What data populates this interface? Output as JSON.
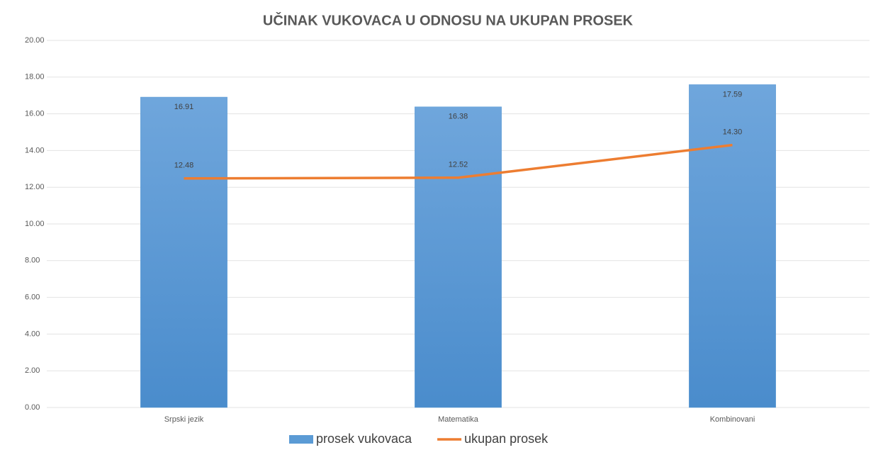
{
  "chart_data": {
    "type": "bar",
    "title": "UČINAK VUKOVACA U ODNOSU NA UKUPAN PROSEK",
    "categories": [
      "Srpski jezik",
      "Matematika",
      "Kombinovani"
    ],
    "series": [
      {
        "name": "prosek vukovaca",
        "type": "bar",
        "color": "#5b9bd5",
        "values": [
          16.91,
          16.38,
          17.59
        ],
        "value_labels": [
          "16.91",
          "16.38",
          "17.59"
        ]
      },
      {
        "name": "ukupan prosek",
        "type": "line",
        "color": "#ed7d31",
        "values": [
          12.48,
          12.52,
          14.3
        ],
        "value_labels": [
          "12.48",
          "12.52",
          "14.30"
        ]
      }
    ],
    "ylim": [
      0,
      20
    ],
    "yticks": [
      {
        "value": 0,
        "label": "0.00"
      },
      {
        "value": 2,
        "label": "2.00"
      },
      {
        "value": 4,
        "label": "4.00"
      },
      {
        "value": 6,
        "label": "6.00"
      },
      {
        "value": 8,
        "label": "8.00"
      },
      {
        "value": 10,
        "label": "10.00"
      },
      {
        "value": 12,
        "label": "12.00"
      },
      {
        "value": 14,
        "label": "14.00"
      },
      {
        "value": 16,
        "label": "16.00"
      },
      {
        "value": 18,
        "label": "18.00"
      },
      {
        "value": 20,
        "label": "20.00"
      }
    ],
    "grid": true,
    "legend": "bottom"
  }
}
